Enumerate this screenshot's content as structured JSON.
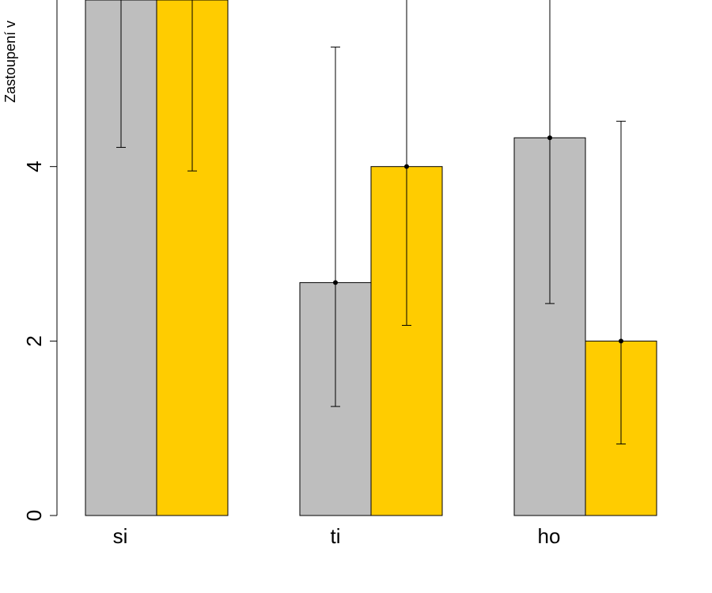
{
  "chart_data": {
    "type": "bar",
    "title": "",
    "xlabel": "",
    "ylabel": "Zastoupení v",
    "categories": [
      "si",
      "ti",
      "ho"
    ],
    "y_ticks": [
      0,
      2,
      4
    ],
    "y_tick_labels": [
      "0",
      "2",
      "4"
    ],
    "ylim": [
      0,
      6
    ],
    "grid": false,
    "series": [
      {
        "color": "#BEBEBE",
        "values": [
          6.0,
          2.67,
          4.33
        ],
        "error_low": [
          4.22,
          1.25,
          2.43
        ],
        "error_high": [
          6.0,
          5.37,
          6.0
        ]
      },
      {
        "color": "#FFCC00",
        "values": [
          6.0,
          4.0,
          2.0
        ],
        "error_low": [
          3.95,
          2.18,
          0.82
        ],
        "error_high": [
          6.0,
          6.0,
          4.52
        ]
      }
    ]
  }
}
